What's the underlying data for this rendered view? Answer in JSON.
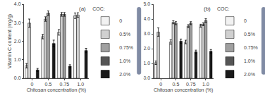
{
  "chart_data": [
    {
      "type": "bar",
      "title": "(a)",
      "xlabel": "Chitosan concentration (%)",
      "ylabel": "Vitamin C content (mg/g)",
      "categories": [
        "0",
        "0.5",
        "0.75",
        "1.0"
      ],
      "series": [
        {
          "name": "0",
          "color": "#f2f2f2",
          "values": [
            0.68,
            2.25,
            2.48,
            3.38
          ],
          "errors": [
            0.12,
            0.12,
            0.15,
            0.15
          ]
        },
        {
          "name": "0.5%",
          "color": "#d0d0d0",
          "values": [
            2.98,
            3.2,
            3.45,
            3.42
          ],
          "errors": [
            0.22,
            0.12,
            0.1,
            0.12
          ]
        },
        {
          "name": "0.75%",
          "color": "#a0a0a0",
          "values": [
            null,
            3.52,
            3.45,
            null
          ],
          "errors": [
            null,
            0.12,
            0.1,
            null
          ]
        },
        {
          "name": "1.0%",
          "color": "#555555",
          "values": [
            null,
            null,
            null,
            null
          ],
          "errors": [
            null,
            null,
            null,
            null
          ]
        },
        {
          "name": "2.0%",
          "color": "#1a1a1a",
          "values": [
            0.45,
            1.88,
            0.65,
            1.5
          ],
          "errors": [
            0.08,
            0.18,
            0.08,
            0.12
          ]
        }
      ],
      "ylim": [
        0.0,
        4.0
      ],
      "yticks": [
        {
          "value": 0.0,
          "label": "0.0"
        },
        {
          "value": 1.0,
          "label": "1.0"
        },
        {
          "value": 2.0,
          "label": "2.0"
        },
        {
          "value": 3.0,
          "label": "3.0"
        },
        {
          "value": 4.0,
          "label": "4.0"
        }
      ],
      "grid": false,
      "legend": "right",
      "legend_title": "COC:"
    },
    {
      "type": "bar",
      "title": "(b)",
      "xlabel": "Chitosan concentration (%)",
      "categories": [
        "0",
        "0.5",
        "0.75",
        "1.0"
      ],
      "series": [
        {
          "name": "0",
          "color": "#f2f2f2",
          "values": [
            1.05,
            2.45,
            2.45,
            3.55
          ],
          "errors": [
            0.12,
            0.15,
            0.12,
            0.1
          ]
        },
        {
          "name": "0.5%",
          "color": "#d0d0d0",
          "values": [
            3.12,
            3.78,
            3.52,
            3.65
          ],
          "errors": [
            0.28,
            0.1,
            0.1,
            0.1
          ]
        },
        {
          "name": "0.75%",
          "color": "#a0a0a0",
          "values": [
            null,
            3.72,
            3.72,
            3.9
          ],
          "errors": [
            null,
            0.1,
            0.1,
            0.12
          ]
        },
        {
          "name": "1.0%",
          "color": "#555555",
          "values": [
            null,
            null,
            null,
            null
          ],
          "errors": [
            null,
            null,
            null,
            null
          ]
        },
        {
          "name": "2.0%",
          "color": "#1a1a1a",
          "values": [
            null,
            2.5,
            1.78,
            1.82
          ],
          "errors": [
            null,
            0.15,
            0.12,
            0.12
          ]
        }
      ],
      "ylim": [
        0.0,
        5.0
      ],
      "yticks": [
        {
          "value": 0.0,
          "label": "0.0"
        },
        {
          "value": 1.0,
          "label": "1.0"
        },
        {
          "value": 2.0,
          "label": "2.0"
        },
        {
          "value": 3.0,
          "label": "3.0"
        },
        {
          "value": 4.0,
          "label": "4.0"
        },
        {
          "value": 5.0,
          "label": "5.0"
        }
      ],
      "grid": false,
      "legend": "right",
      "legend_title": "COC:"
    }
  ]
}
